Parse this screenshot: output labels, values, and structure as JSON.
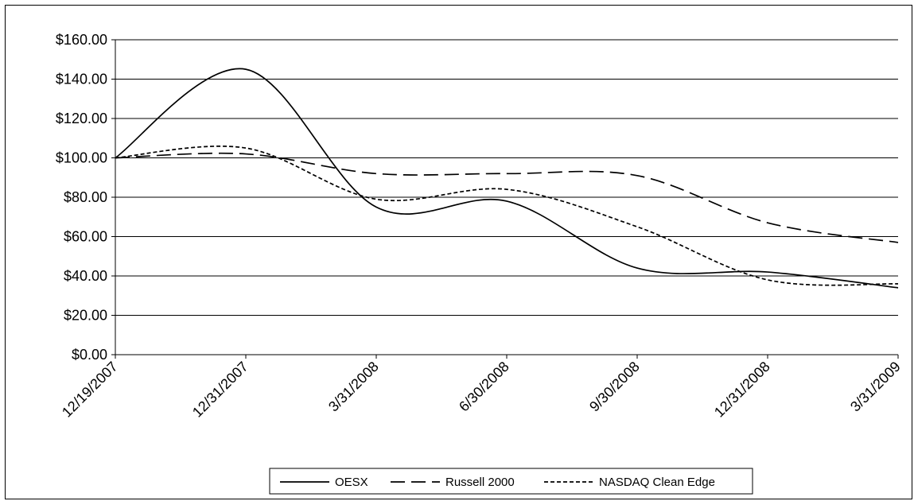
{
  "chart_data": {
    "type": "line",
    "categories": [
      "12/19/2007",
      "12/31/2007",
      "3/31/2008",
      "6/30/2008",
      "9/30/2008",
      "12/31/2008",
      "3/31/2009"
    ],
    "y_ticks": [
      "$0.00",
      "$20.00",
      "$40.00",
      "$60.00",
      "$80.00",
      "$100.00",
      "$120.00",
      "$140.00",
      "$160.00"
    ],
    "ylim": [
      0,
      160
    ],
    "grid": true,
    "legend_position": "bottom",
    "series": [
      {
        "name": "OESX",
        "style": "solid",
        "values": [
          100,
          145,
          75,
          78,
          44,
          42,
          34
        ]
      },
      {
        "name": "Russell 2000",
        "style": "long-dash",
        "values": [
          100,
          102,
          92,
          92,
          91,
          67,
          57
        ]
      },
      {
        "name": "NASDAQ Clean Edge",
        "style": "short-dash",
        "values": [
          100,
          105,
          79,
          84,
          65,
          38,
          36
        ]
      }
    ],
    "colors": {
      "line": "#000000",
      "grid": "#000000",
      "background": "#ffffff"
    }
  }
}
